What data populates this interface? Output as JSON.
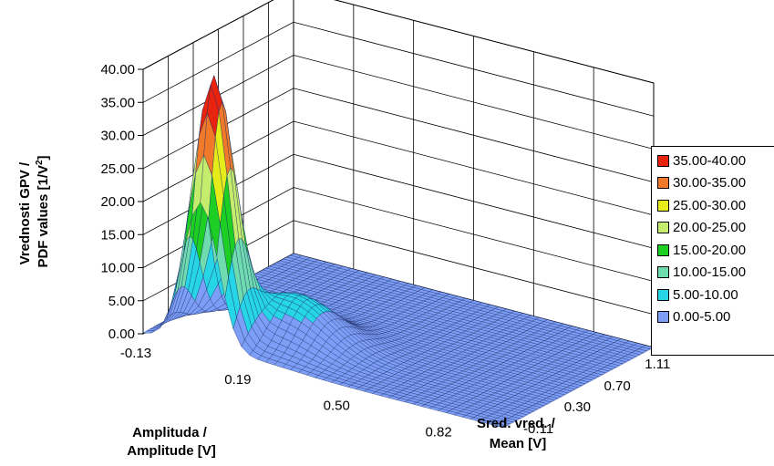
{
  "chart_data": {
    "type": "surface",
    "zlabel_line1": "Vrednosti GPV /",
    "zlabel_line2": "PDF values [1/V",
    "zlabel_sup": "2",
    "zlabel_end": "]",
    "xlabel_line1": "Amplituda /",
    "xlabel_line2": "Amplitude [V]",
    "ylabel_line1": "Sred. vred. /",
    "ylabel_line2": "Mean [V]",
    "z_ticks": [
      "0.00",
      "5.00",
      "10.00",
      "15.00",
      "20.00",
      "25.00",
      "30.00",
      "35.00",
      "40.00"
    ],
    "x_ticks": [
      "-0.13",
      "0.19",
      "0.50",
      "0.82"
    ],
    "y_ticks": [
      "-0.11",
      "0.30",
      "0.70",
      "1.11"
    ],
    "zlim": [
      0,
      40
    ],
    "xlim": [
      -0.13,
      1.0
    ],
    "ylim": [
      -0.11,
      1.4
    ],
    "grid": true,
    "legend_position": "right",
    "peaks": [
      {
        "amplitude": 0.05,
        "mean": 0.02,
        "height": 39.5,
        "sigma_amplitude": 0.055,
        "sigma_mean": 0.12
      },
      {
        "amplitude": 0.22,
        "mean": 0.3,
        "height": 7.0,
        "sigma_amplitude": 0.12,
        "sigma_mean": 0.18
      }
    ],
    "legend": [
      {
        "label": "35.00-40.00",
        "color": "#e8240e"
      },
      {
        "label": "30.00-35.00",
        "color": "#f07a2a"
      },
      {
        "label": "25.00-30.00",
        "color": "#e6ec1a"
      },
      {
        "label": "20.00-25.00",
        "color": "#c6ec6e"
      },
      {
        "label": "15.00-20.00",
        "color": "#1ccf22"
      },
      {
        "label": "10.00-15.00",
        "color": "#6fdcb0"
      },
      {
        "label": "5.00-10.00",
        "color": "#26d6e6"
      },
      {
        "label": "0.00-5.00",
        "color": "#7d9ef6"
      }
    ]
  }
}
